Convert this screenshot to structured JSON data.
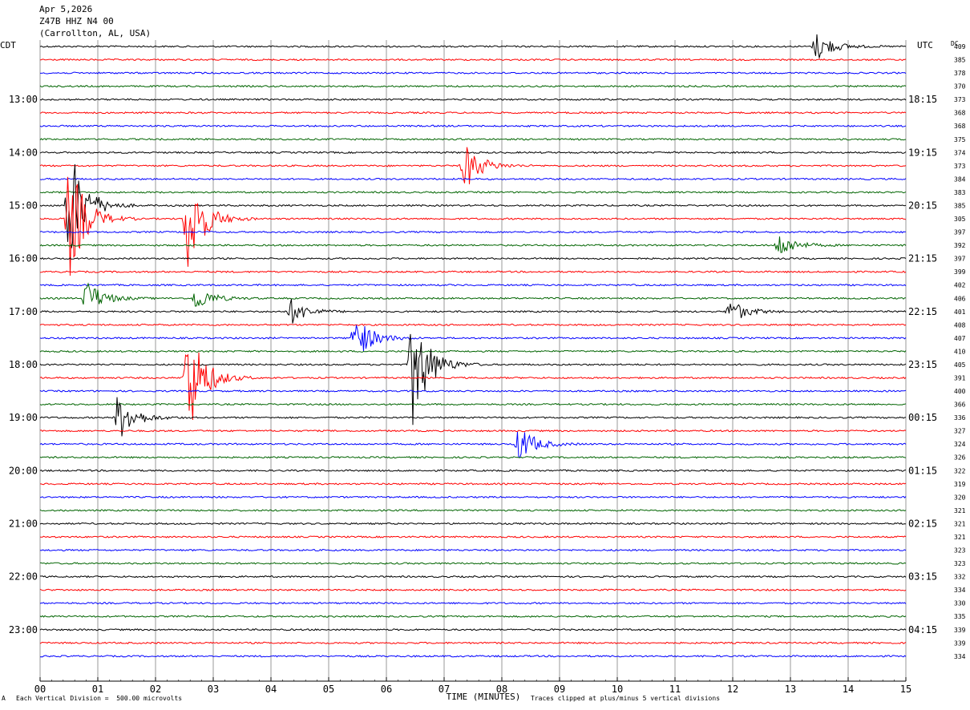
{
  "header": {
    "date": "Apr 5,2026",
    "station": "Z47B HHZ N4 00",
    "location": "(Carrollton, AL, USA)"
  },
  "left_axis_title": "CDT",
  "right_axis_title": "UTC",
  "dc_title": "DC",
  "footer": {
    "scale_note": "Each Vertical Division =  500.00 microvolts",
    "x_title": "TIME (MINUTES)",
    "clip_note": "Traces clipped at plus/minus 5 vertical divisions",
    "corner_mark": "A"
  },
  "colors": {
    "black": "#000000",
    "red": "#ff0000",
    "blue": "#0000ff",
    "green": "#006400",
    "grid": "#808080"
  },
  "chart_data": {
    "type": "line",
    "title": "Z47B HHZ N4 00",
    "xlabel": "TIME (MINUTES)",
    "xlim": [
      0,
      15
    ],
    "x_ticks": [
      "00",
      "01",
      "02",
      "03",
      "04",
      "05",
      "06",
      "07",
      "08",
      "09",
      "10",
      "11",
      "12",
      "13",
      "14",
      "15"
    ],
    "trace_colors": [
      "black",
      "red",
      "blue",
      "green"
    ],
    "minutes_per_trace": 15,
    "left_time_labels": [
      {
        "trace": 4,
        "label": "13:00"
      },
      {
        "trace": 8,
        "label": "14:00"
      },
      {
        "trace": 12,
        "label": "15:00"
      },
      {
        "trace": 16,
        "label": "16:00"
      },
      {
        "trace": 20,
        "label": "17:00"
      },
      {
        "trace": 24,
        "label": "18:00"
      },
      {
        "trace": 28,
        "label": "19:00"
      },
      {
        "trace": 32,
        "label": "20:00"
      },
      {
        "trace": 36,
        "label": "21:00"
      },
      {
        "trace": 40,
        "label": "22:00"
      },
      {
        "trace": 44,
        "label": "23:00"
      }
    ],
    "right_time_labels": [
      {
        "trace": 4,
        "label": "18:15"
      },
      {
        "trace": 8,
        "label": "19:15"
      },
      {
        "trace": 12,
        "label": "20:15"
      },
      {
        "trace": 16,
        "label": "21:15"
      },
      {
        "trace": 20,
        "label": "22:15"
      },
      {
        "trace": 24,
        "label": "23:15"
      },
      {
        "trace": 28,
        "label": "00:15"
      },
      {
        "trace": 32,
        "label": "01:15"
      },
      {
        "trace": 36,
        "label": "02:15"
      },
      {
        "trace": 40,
        "label": "03:15"
      },
      {
        "trace": 44,
        "label": "04:15"
      }
    ],
    "dc_offsets": [
      409,
      385,
      378,
      370,
      373,
      368,
      368,
      375,
      374,
      373,
      384,
      383,
      385,
      305,
      397,
      392,
      397,
      399,
      402,
      406,
      401,
      408,
      407,
      410,
      405,
      391,
      400,
      366,
      336,
      327,
      324,
      326,
      322,
      319,
      320,
      321,
      321,
      321,
      323,
      323,
      332,
      334,
      330,
      335,
      339,
      339,
      334
    ],
    "events": [
      {
        "trace": 13,
        "minute": 0.5,
        "amp": 5
      },
      {
        "trace": 12,
        "minute": 0.5,
        "amp": 5
      },
      {
        "trace": 13,
        "minute": 2.55,
        "amp": 4.5
      },
      {
        "trace": 25,
        "minute": 2.55,
        "amp": 5
      },
      {
        "trace": 24,
        "minute": 6.45,
        "amp": 5
      },
      {
        "trace": 22,
        "minute": 5.45,
        "amp": 2
      },
      {
        "trace": 19,
        "minute": 0.8,
        "amp": 1.5
      },
      {
        "trace": 19,
        "minute": 2.7,
        "amp": 1
      },
      {
        "trace": 0,
        "minute": 13.45,
        "amp": 1.2
      },
      {
        "trace": 9,
        "minute": 7.35,
        "amp": 2
      },
      {
        "trace": 28,
        "minute": 1.35,
        "amp": 2
      },
      {
        "trace": 30,
        "minute": 8.3,
        "amp": 1.5
      },
      {
        "trace": 20,
        "minute": 4.35,
        "amp": 1
      },
      {
        "trace": 20,
        "minute": 11.95,
        "amp": 1
      },
      {
        "trace": 15,
        "minute": 12.8,
        "amp": 1
      }
    ]
  }
}
